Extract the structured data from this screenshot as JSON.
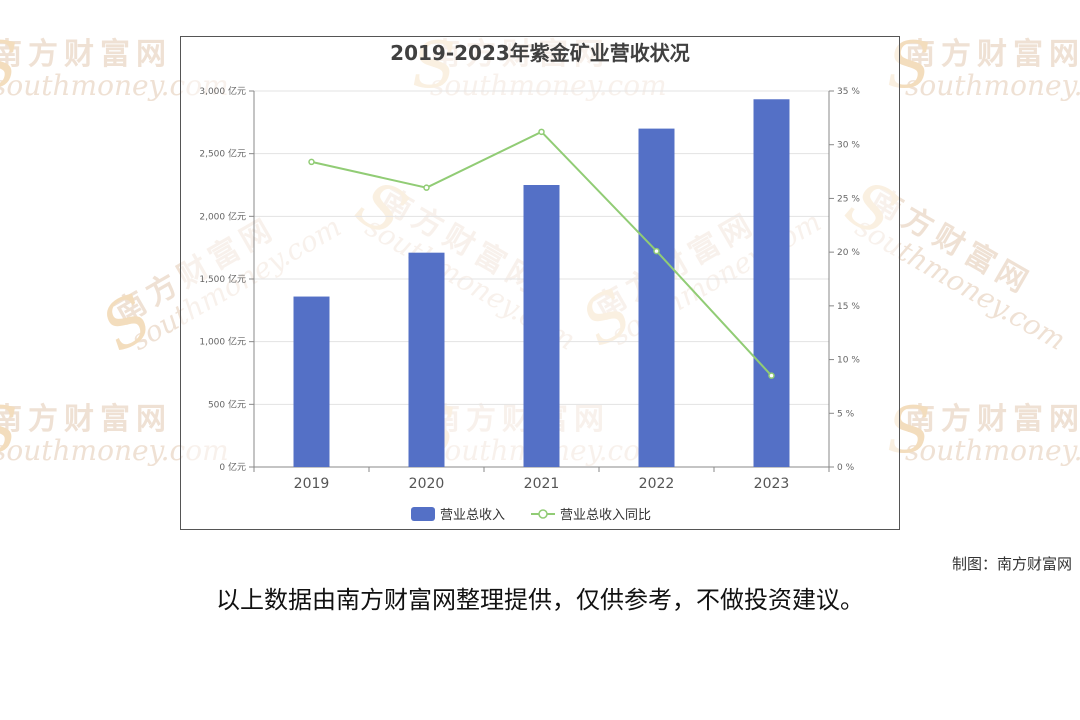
{
  "watermark": {
    "cn": "南方财富网",
    "en": "southmoney.com"
  },
  "chart_data": {
    "type": "bar",
    "title": "2019-2023年紫金矿业营收状况",
    "categories": [
      "2019",
      "2020",
      "2021",
      "2022",
      "2023"
    ],
    "series": [
      {
        "name": "营业总收入",
        "type": "bar",
        "axis": "left",
        "color": "#5470c6",
        "values": [
          1360,
          1710,
          2250,
          2700,
          2934
        ]
      },
      {
        "name": "营业总收入同比",
        "type": "line",
        "axis": "right",
        "color": "#91cc75",
        "values": [
          28.4,
          26.0,
          31.2,
          20.1,
          8.5
        ]
      }
    ],
    "y_left": {
      "min": 0,
      "max": 3000,
      "step": 500,
      "tick_labels": [
        "0 亿元",
        "500 亿元",
        "1,000 亿元",
        "1,500 亿元",
        "2,000 亿元",
        "2,500 亿元",
        "3,000 亿元"
      ]
    },
    "y_right": {
      "min": 0,
      "max": 35,
      "step": 5,
      "tick_labels": [
        "0 %",
        "5 %",
        "10 %",
        "15 %",
        "20 %",
        "25 %",
        "30 %",
        "35 %"
      ]
    },
    "grid": true,
    "legend_position": "bottom"
  },
  "footer": {
    "source": "制图：南方财富网",
    "disclaimer": "以上数据由南方财富网整理提供，仅供参考，不做投资建议。"
  }
}
